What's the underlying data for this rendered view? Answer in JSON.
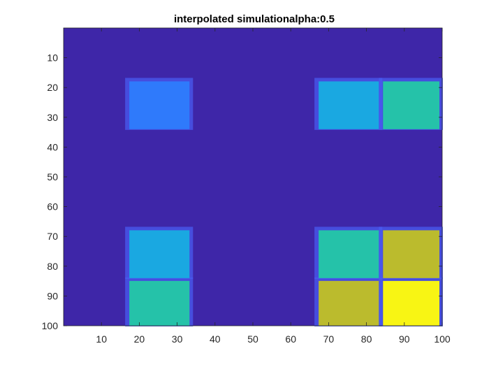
{
  "chart_data": {
    "type": "heatmap",
    "title": "interpolated simulationalpha:0.5",
    "xlabel": "",
    "ylabel": "",
    "xlim": [
      0,
      100
    ],
    "ylim": [
      0,
      100
    ],
    "y_reversed": true,
    "x_ticks": [
      10,
      20,
      30,
      40,
      50,
      60,
      70,
      80,
      90,
      100
    ],
    "y_ticks": [
      10,
      20,
      30,
      40,
      50,
      60,
      70,
      80,
      90,
      100
    ],
    "x_tick_labels": [
      "10",
      "20",
      "30",
      "40",
      "50",
      "60",
      "70",
      "80",
      "90",
      "100"
    ],
    "y_tick_labels": [
      "10",
      "20",
      "30",
      "40",
      "50",
      "60",
      "70",
      "80",
      "90",
      "100"
    ],
    "colormap": "parula",
    "background_color": "#3E26A8",
    "colors": {
      "background": "#3E26A8",
      "blue": "#2F7AFB",
      "cyan": "#1AA8E1",
      "teal": "#25C2A9",
      "olive": "#BBBB2D",
      "yellow": "#F8F514",
      "halo": "#4A5BF0"
    },
    "cells": [
      {
        "x": [
          17,
          34
        ],
        "y": [
          17,
          34
        ],
        "color": "#2F7AFB"
      },
      {
        "x": [
          67,
          84
        ],
        "y": [
          17,
          34
        ],
        "color": "#1AA8E1"
      },
      {
        "x": [
          84,
          100
        ],
        "y": [
          17,
          34
        ],
        "color": "#25C2A9"
      },
      {
        "x": [
          17,
          34
        ],
        "y": [
          67,
          84
        ],
        "color": "#1AA8E1"
      },
      {
        "x": [
          17,
          34
        ],
        "y": [
          84,
          100
        ],
        "color": "#25C2A9"
      },
      {
        "x": [
          67,
          84
        ],
        "y": [
          67,
          84
        ],
        "color": "#25C2A9"
      },
      {
        "x": [
          84,
          100
        ],
        "y": [
          67,
          84
        ],
        "color": "#BBBB2D"
      },
      {
        "x": [
          67,
          84
        ],
        "y": [
          84,
          100
        ],
        "color": "#BBBB2D"
      },
      {
        "x": [
          84,
          100
        ],
        "y": [
          84,
          100
        ],
        "color": "#F8F514"
      }
    ],
    "grid": false,
    "legend": "none"
  }
}
